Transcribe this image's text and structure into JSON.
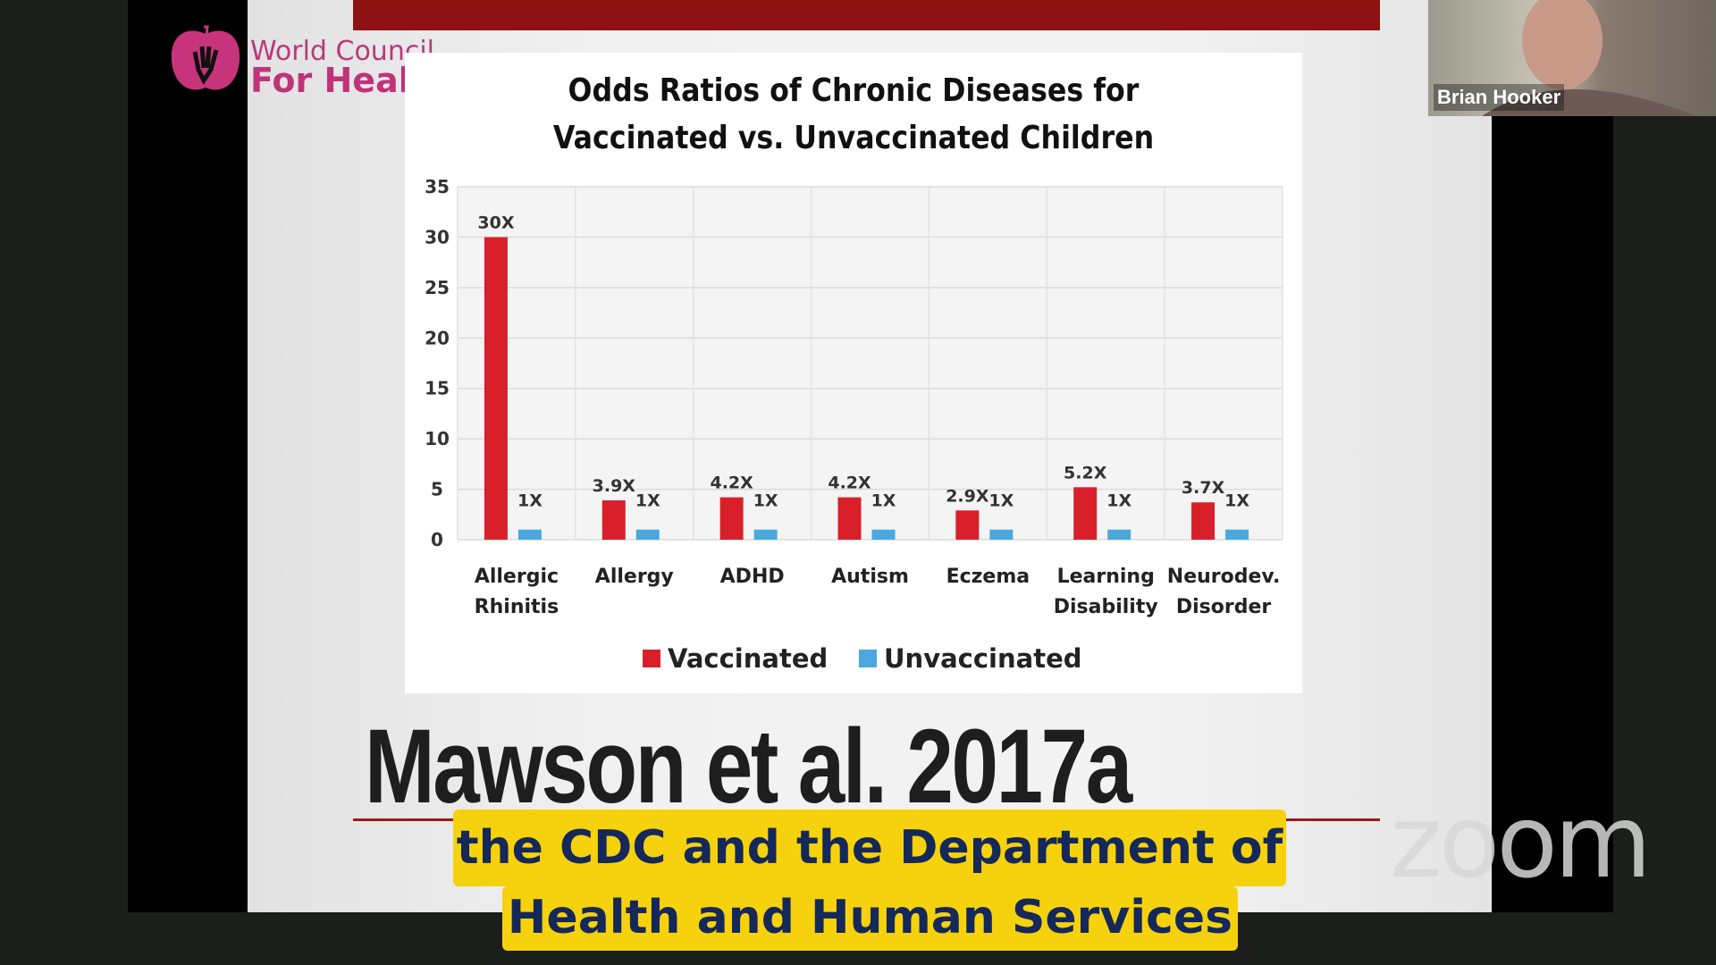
{
  "branding": {
    "org_line1": "World Council",
    "org_line2": "For Health"
  },
  "participant": {
    "name": "Brian Hooker"
  },
  "slide": {
    "citation": "Mawson et al. 2017a"
  },
  "captions": {
    "line1": "the CDC and the Department of",
    "line2": "Health and Human Services"
  },
  "watermark": "zoom",
  "colors": {
    "vaccinated": "#d9202a",
    "unvaccinated": "#4aa8de",
    "caption_bg": "#f6d20e",
    "caption_text": "#15285a",
    "slide_bar": "#8e1212"
  },
  "chart_data": {
    "type": "bar",
    "title_line1": "Odds Ratios of Chronic Diseases for",
    "title_line2": "Vaccinated vs. Unvaccinated Children",
    "categories": [
      [
        "Allergic",
        "Rhinitis"
      ],
      [
        "Allergy",
        ""
      ],
      [
        "ADHD",
        ""
      ],
      [
        "Autism",
        ""
      ],
      [
        "Eczema",
        ""
      ],
      [
        "Learning",
        "Disability"
      ],
      [
        "Neurodev.",
        "Disorder"
      ]
    ],
    "series": [
      {
        "name": "Vaccinated",
        "values": [
          30,
          3.9,
          4.2,
          4.2,
          2.9,
          5.2,
          3.7
        ],
        "labels": [
          "30X",
          "3.9X",
          "4.2X",
          "4.2X",
          "2.9X",
          "5.2X",
          "3.7X"
        ]
      },
      {
        "name": "Unvaccinated",
        "values": [
          1,
          1,
          1,
          1,
          1,
          1,
          1
        ],
        "labels": [
          "1X",
          "1X",
          "1X",
          "1X",
          "1X",
          "1X",
          "1X"
        ]
      }
    ],
    "ylim": [
      0,
      35
    ],
    "yticks": [
      0,
      5,
      10,
      15,
      20,
      25,
      30,
      35
    ],
    "grid": true,
    "legend_position": "bottom"
  }
}
